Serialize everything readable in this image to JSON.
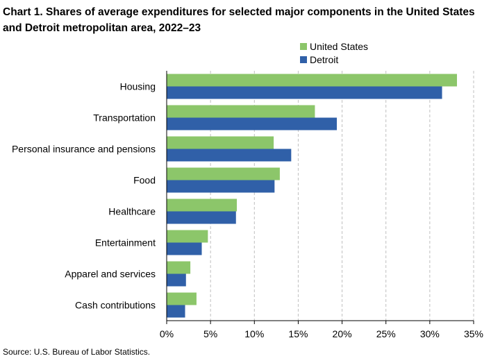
{
  "title": "Chart 1. Shares of average expenditures for selected major components in the United States and Detroit metropolitan area, 2022–23",
  "source": "Source: U.S. Bureau of Labor Statistics.",
  "colors": {
    "us": "#8cc66a",
    "detroit": "#3060a8",
    "grid": "#bfbfbf",
    "axis": "#000000"
  },
  "chart_data": {
    "type": "bar",
    "orientation": "horizontal",
    "categories": [
      "Housing",
      "Transportation",
      "Personal insurance and pensions",
      "Food",
      "Healthcare",
      "Entertainment",
      "Apparel and services",
      "Cash contributions"
    ],
    "series": [
      {
        "name": "United States",
        "values": [
          33.1,
          16.9,
          12.2,
          12.9,
          8.0,
          4.7,
          2.7,
          3.4
        ]
      },
      {
        "name": "Detroit",
        "values": [
          31.4,
          19.4,
          14.2,
          12.3,
          7.9,
          4.0,
          2.2,
          2.1
        ]
      }
    ],
    "xlim": [
      0,
      35
    ],
    "xticks": [
      0,
      5,
      10,
      15,
      20,
      25,
      30,
      35
    ],
    "xtick_labels": [
      "0%",
      "5%",
      "10%",
      "15%",
      "20%",
      "25%",
      "30%",
      "35%"
    ],
    "grid": true,
    "legend": "top-right",
    "xlabel": "",
    "ylabel": ""
  }
}
